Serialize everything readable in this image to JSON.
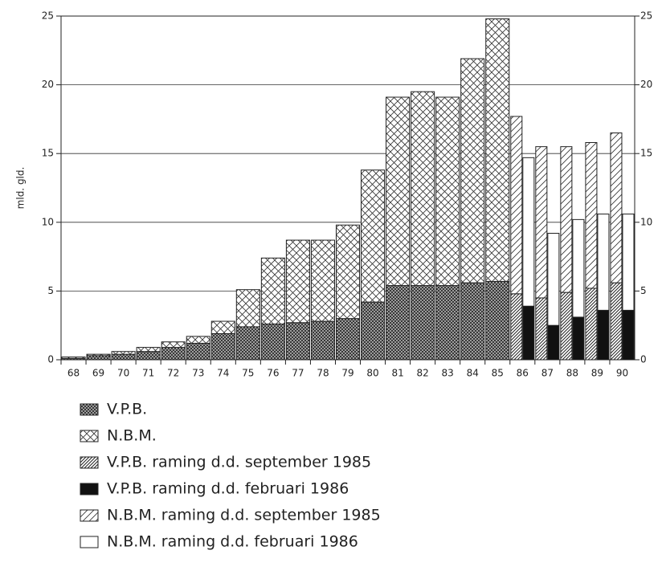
{
  "chart_data": {
    "type": "bar",
    "y_label": "mld. gld.",
    "categories": [
      "68",
      "69",
      "70",
      "71",
      "72",
      "73",
      "74",
      "75",
      "76",
      "77",
      "78",
      "79",
      "80",
      "81",
      "82",
      "83",
      "84",
      "85",
      "86",
      "87",
      "88",
      "89",
      "90"
    ],
    "ylim": [
      0,
      25
    ],
    "yticks": [
      0,
      5,
      10,
      15,
      20,
      25
    ],
    "grid": true,
    "series": [
      {
        "name": "V.P.B.",
        "stack": "actual",
        "pattern": "dense-cross",
        "color": "#555",
        "values": [
          0.1,
          0.3,
          0.4,
          0.6,
          0.9,
          1.2,
          1.9,
          2.4,
          2.6,
          2.7,
          2.8,
          3.0,
          4.2,
          5.4,
          5.4,
          5.4,
          5.6,
          5.7,
          null,
          null,
          null,
          null,
          null
        ]
      },
      {
        "name": "N.B.M.",
        "stack": "actual",
        "pattern": "cross",
        "color": "#333",
        "values": [
          0.1,
          0.1,
          0.2,
          0.3,
          0.4,
          0.5,
          0.9,
          2.7,
          4.8,
          6.0,
          5.9,
          6.8,
          9.6,
          13.7,
          14.1,
          13.7,
          16.3,
          19.1,
          null,
          null,
          null,
          null,
          null
        ]
      },
      {
        "name": "V.P.B. raming d.d. september 1985",
        "stack": "left",
        "pattern": "dense-diagonal",
        "color": "#444",
        "values": [
          null,
          null,
          null,
          null,
          null,
          null,
          null,
          null,
          null,
          null,
          null,
          null,
          null,
          null,
          null,
          null,
          null,
          null,
          4.8,
          4.5,
          4.9,
          5.2,
          5.6
        ]
      },
      {
        "name": "V.P.B. raming d.d. februari 1986",
        "stack": "right",
        "pattern": "solid",
        "color": "#111",
        "values": [
          null,
          null,
          null,
          null,
          null,
          null,
          null,
          null,
          null,
          null,
          null,
          null,
          null,
          null,
          null,
          null,
          null,
          null,
          3.9,
          2.5,
          3.1,
          3.6,
          3.6
        ]
      },
      {
        "name": "N.B.M. raming d.d. september 1985",
        "stack": "left",
        "pattern": "diagonal",
        "color": "#333",
        "values": [
          null,
          null,
          null,
          null,
          null,
          null,
          null,
          null,
          null,
          null,
          null,
          null,
          null,
          null,
          null,
          null,
          null,
          null,
          12.9,
          11.0,
          10.6,
          10.6,
          10.9
        ]
      },
      {
        "name": "N.B.M. raming d.d. februari 1986",
        "stack": "right",
        "pattern": "none",
        "color": "#333",
        "values": [
          null,
          null,
          null,
          null,
          null,
          null,
          null,
          null,
          null,
          null,
          null,
          null,
          null,
          null,
          null,
          null,
          null,
          null,
          10.8,
          6.7,
          7.1,
          7.0,
          7.0
        ]
      }
    ]
  }
}
